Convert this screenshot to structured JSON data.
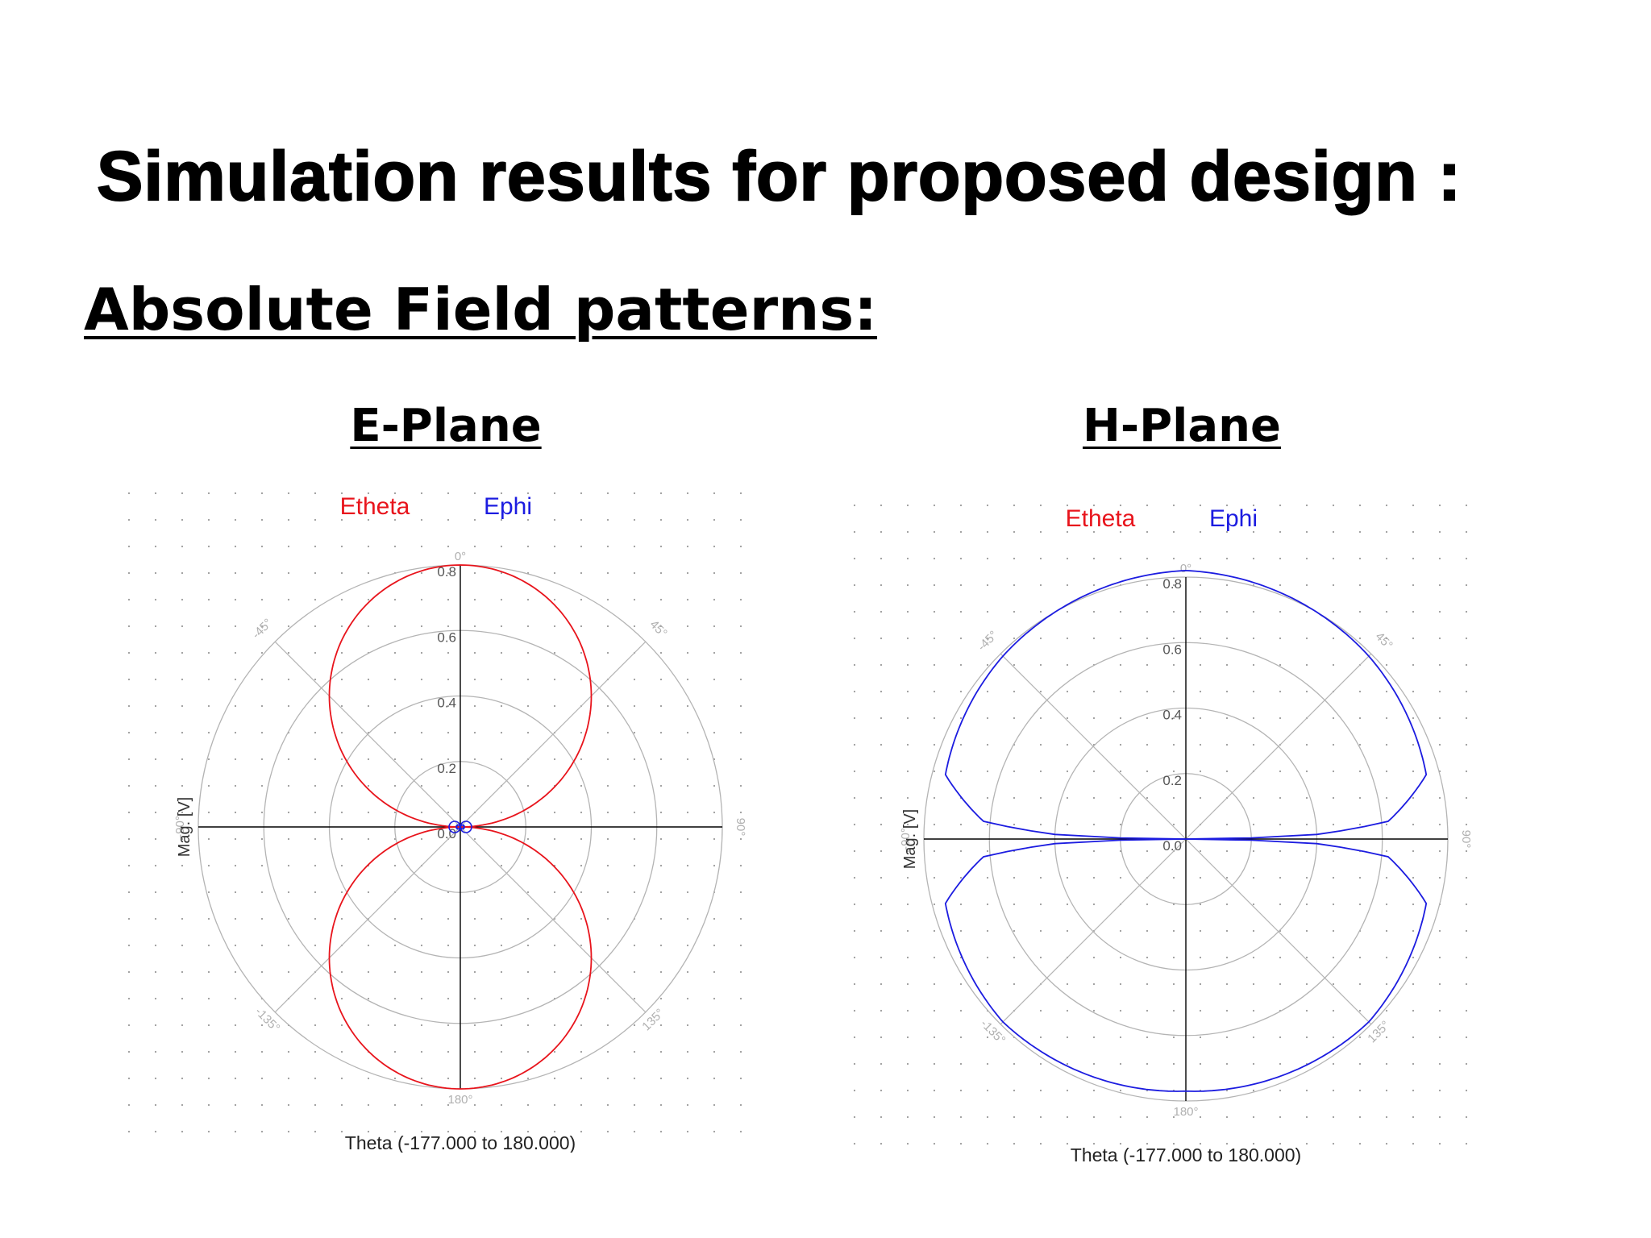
{
  "slide": {
    "title": "Simulation results for proposed design :",
    "subtitle": "Absolute Field patterns:"
  },
  "colors": {
    "etheta": "#e8141c",
    "ephi": "#1c1ce0",
    "grid": "#b4b4b4",
    "axis": "#000000"
  },
  "chart_data": [
    {
      "type": "polar-line",
      "heading": "E-Plane",
      "legend": [
        "Etheta",
        "Ephi"
      ],
      "ylabel": "Mag. [V]",
      "xlabel": "Theta (-177.000 to 180.000)",
      "radial_ticks": [
        "0.8",
        "0.6",
        "0.4",
        "0.2",
        "0.0"
      ],
      "angle_ticks": [
        "0°",
        "45°",
        "90°",
        "135°",
        "180°",
        "-135°",
        "-90°",
        "-45°"
      ],
      "r_max": 0.8,
      "series": [
        {
          "name": "Etheta",
          "color": "#e8141c",
          "pattern": "abs_cos",
          "peak": 0.8,
          "samples": [
            [
              0,
              0.8
            ],
            [
              30,
              0.69
            ],
            [
              60,
              0.4
            ],
            [
              90,
              0.0
            ],
            [
              120,
              0.4
            ],
            [
              150,
              0.69
            ],
            [
              180,
              0.8
            ]
          ]
        },
        {
          "name": "Ephi",
          "color": "#1c1ce0",
          "pattern": "abs_sin",
          "peak": 0.012,
          "samples": [
            [
              0,
              0.0
            ],
            [
              90,
              0.012
            ],
            [
              180,
              0.0
            ]
          ]
        }
      ]
    },
    {
      "type": "polar-line",
      "heading": "H-Plane",
      "legend": [
        "Etheta",
        "Ephi"
      ],
      "ylabel": "Mag. [V]",
      "xlabel": "Theta (-177.000 to 180.000)",
      "radial_ticks": [
        "0.8",
        "0.6",
        "0.4",
        "0.2",
        "0.0"
      ],
      "angle_ticks": [
        "0°",
        "45°",
        "90°",
        "135°",
        "180°",
        "-135°",
        "-90°",
        "-45°"
      ],
      "r_max": 0.8,
      "series": [
        {
          "name": "Ephi",
          "color": "#1c1ce0",
          "pattern": "near_omni",
          "samples": [
            [
              0,
              0.82
            ],
            [
              45,
              0.79
            ],
            [
              75,
              0.76
            ],
            [
              85,
              0.62
            ],
            [
              88,
              0.4
            ],
            [
              90,
              0.0
            ],
            [
              92,
              0.4
            ],
            [
              95,
              0.62
            ],
            [
              105,
              0.76
            ],
            [
              135,
              0.79
            ],
            [
              180,
              0.77
            ]
          ]
        }
      ]
    }
  ]
}
